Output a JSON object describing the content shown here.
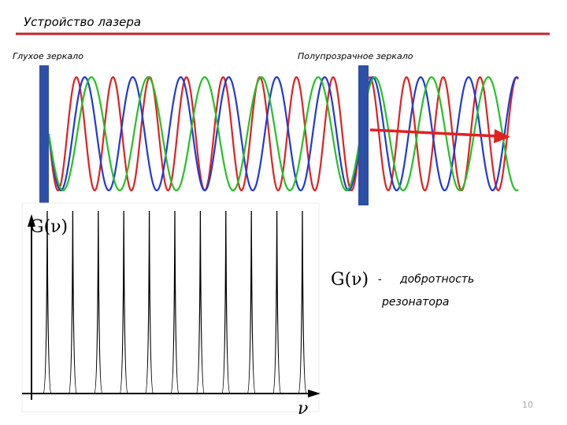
{
  "title": "Устройство лазера",
  "labels": {
    "left_mirror": "Глухое зеркало",
    "right_mirror": "Полупрозрачное зеркало"
  },
  "graph": {
    "y_label": "G(ν)",
    "x_label": "ν"
  },
  "caption": {
    "symbol": "G(ν)",
    "dash": "-",
    "line1": "добротность",
    "line2": "резонатора"
  },
  "page_number": "10"
}
